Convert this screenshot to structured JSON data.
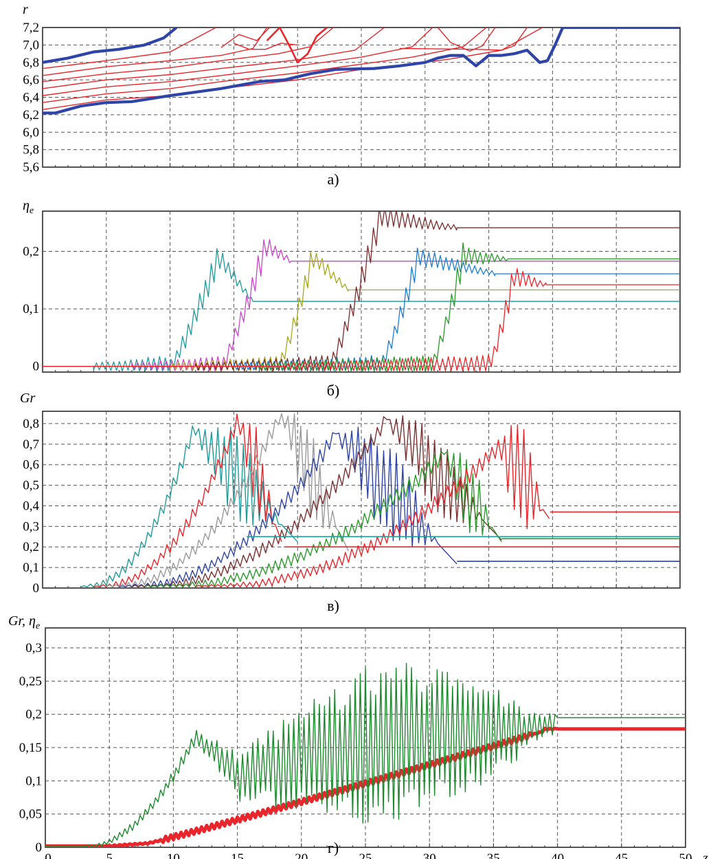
{
  "chart_data": [
    {
      "panel": "a",
      "type": "line",
      "caption": "а)",
      "ylabel": "r",
      "xlim": [
        0,
        50
      ],
      "ylim": [
        5.6,
        7.2
      ],
      "yticks": [
        "5,6",
        "5,8",
        "6,0",
        "6,2",
        "6,4",
        "6,6",
        "6,8",
        "7,0",
        "7,2"
      ],
      "grid": true,
      "series": [
        {
          "color": "#e8262b",
          "width": 1.4,
          "points": [
            [
              0,
              6.26
            ],
            [
              5,
              6.37
            ],
            [
              10,
              6.42
            ],
            [
              14,
              6.5
            ],
            [
              20,
              6.6
            ],
            [
              25,
              6.72
            ],
            [
              28,
              6.76
            ],
            [
              32,
              6.84
            ],
            [
              36,
              6.94
            ],
            [
              39.2,
              7.2
            ]
          ]
        },
        {
          "color": "#e8262b",
          "width": 1.4,
          "points": [
            [
              0,
              6.34
            ],
            [
              5,
              6.44
            ],
            [
              10,
              6.5
            ],
            [
              14,
              6.58
            ],
            [
              20,
              6.68
            ],
            [
              25,
              6.78
            ],
            [
              29,
              6.86
            ],
            [
              33,
              6.98
            ],
            [
              34.8,
              7.2
            ]
          ]
        },
        {
          "color": "#e8262b",
          "width": 1.4,
          "points": [
            [
              0,
              6.42
            ],
            [
              5,
              6.52
            ],
            [
              10,
              6.58
            ],
            [
              14,
              6.65
            ],
            [
              20,
              6.76
            ],
            [
              25,
              6.86
            ],
            [
              29,
              6.98
            ],
            [
              30.6,
              7.2
            ]
          ]
        },
        {
          "color": "#e8262b",
          "width": 1.4,
          "points": [
            [
              0,
              6.5
            ],
            [
              5,
              6.6
            ],
            [
              10,
              6.66
            ],
            [
              14,
              6.73
            ],
            [
              20,
              6.83
            ],
            [
              24.5,
              6.94
            ],
            [
              26.8,
              7.2
            ]
          ]
        },
        {
          "color": "#e8262b",
          "width": 1.4,
          "points": [
            [
              0,
              6.58
            ],
            [
              5,
              6.67
            ],
            [
              10,
              6.74
            ],
            [
              14,
              6.82
            ],
            [
              18.5,
              6.9
            ],
            [
              21,
              6.98
            ],
            [
              22.8,
              7.2
            ]
          ]
        },
        {
          "color": "#e8262b",
          "width": 1.4,
          "points": [
            [
              0,
              6.65
            ],
            [
              5,
              6.75
            ],
            [
              10,
              6.82
            ],
            [
              14,
              6.88
            ],
            [
              16.5,
              6.96
            ],
            [
              17.6,
              7.2
            ]
          ]
        },
        {
          "color": "#e8262b",
          "width": 1.4,
          "points": [
            [
              0,
              6.73
            ],
            [
              5,
              6.82
            ],
            [
              10,
              6.92
            ],
            [
              13.6,
              7.2
            ]
          ]
        },
        {
          "color": "#e8262b",
          "width": 1.4,
          "points": [
            [
              14,
              6.97
            ],
            [
              15.4,
              7.12
            ],
            [
              16.8,
              7.05
            ],
            [
              17.8,
              7.2
            ]
          ]
        },
        {
          "color": "#e8262b",
          "width": 2.6,
          "points": [
            [
              17.6,
              7.05
            ],
            [
              18.6,
              7.2
            ],
            [
              19.4,
              6.98
            ],
            [
              20,
              6.8
            ],
            [
              20.8,
              6.9
            ],
            [
              21.5,
              7.1
            ],
            [
              22.3,
              7.2
            ]
          ]
        },
        {
          "color": "#e8262b",
          "width": 1.4,
          "points": [
            [
              15,
              7.02
            ],
            [
              16.2,
              6.95
            ],
            [
              17.5,
              6.95
            ],
            [
              18.7,
              7.02
            ],
            [
              20,
              7.0
            ]
          ]
        },
        {
          "color": "#e8262b",
          "width": 1.4,
          "points": [
            [
              28,
              6.96
            ],
            [
              34,
              6.95
            ],
            [
              36,
              6.94
            ],
            [
              37,
              6.99
            ],
            [
              38,
              7.2
            ]
          ]
        },
        {
          "color": "#e8262b",
          "width": 1.4,
          "points": [
            [
              31,
              7.2
            ],
            [
              32,
              7.03
            ],
            [
              33.5,
              6.93
            ],
            [
              34.5,
              6.99
            ],
            [
              35.5,
              7.2
            ]
          ]
        },
        {
          "color": "#2e44a8",
          "width": 4.2,
          "points": [
            [
              0,
              6.22
            ],
            [
              1,
              6.22
            ],
            [
              3,
              6.3
            ],
            [
              5,
              6.34
            ],
            [
              7,
              6.35
            ],
            [
              10,
              6.42
            ],
            [
              12,
              6.46
            ],
            [
              14,
              6.5
            ],
            [
              17,
              6.58
            ],
            [
              19,
              6.6
            ],
            [
              21,
              6.67
            ],
            [
              23,
              6.72
            ],
            [
              26,
              6.73
            ],
            [
              28,
              6.76
            ],
            [
              30,
              6.8
            ],
            [
              31,
              6.85
            ],
            [
              32,
              6.88
            ],
            [
              33,
              6.88
            ],
            [
              34,
              6.76
            ],
            [
              35,
              6.88
            ],
            [
              36,
              6.88
            ],
            [
              37,
              6.9
            ],
            [
              38,
              6.94
            ],
            [
              39,
              6.8
            ],
            [
              39.6,
              6.82
            ],
            [
              40.2,
              7.0
            ],
            [
              40.8,
              7.2
            ],
            [
              50,
              7.2
            ]
          ]
        },
        {
          "color": "#2e44a8",
          "width": 4.2,
          "points": [
            [
              0,
              6.8
            ],
            [
              2,
              6.85
            ],
            [
              4,
              6.92
            ],
            [
              6,
              6.95
            ],
            [
              8,
              7.0
            ],
            [
              9.5,
              7.08
            ],
            [
              10.5,
              7.2
            ]
          ]
        }
      ]
    },
    {
      "panel": "b",
      "type": "line",
      "caption": "б)",
      "ylabel": "η",
      "ylabel_sub": "e",
      "xlim": [
        0,
        50
      ],
      "ylim": [
        -0.01,
        0.27
      ],
      "yticks": [
        {
          "v": 0,
          "t": "0"
        },
        {
          "v": 0.1,
          "t": "0,1"
        },
        {
          "v": 0.2,
          "t": "0,2"
        }
      ],
      "grid": true,
      "series": [
        {
          "color": "#1f9a9a",
          "start": 4,
          "rise": 10,
          "peak_x": 13.8,
          "peak": 0.19,
          "final_x": 16.5,
          "final": 0.113,
          "ripple": 0.018
        },
        {
          "color": "#cc44cc",
          "start": 7,
          "rise": 14,
          "peak_x": 17.5,
          "peak": 0.21,
          "final_x": 19.5,
          "final": 0.183,
          "ripple": 0.018
        },
        {
          "color": "#a8a81a",
          "start": 10,
          "rise": 18.5,
          "peak_x": 21.2,
          "peak": 0.19,
          "final_x": 24,
          "final": 0.133,
          "ripple": 0.018
        },
        {
          "color": "#7a2c2c",
          "start": 12,
          "rise": 22.5,
          "peak_x": 26.5,
          "peak": 0.26,
          "final_x": 32.5,
          "final": 0.241,
          "ripple": 0.02
        },
        {
          "color": "#1a7fd1",
          "start": 15,
          "rise": 26.5,
          "peak_x": 29.5,
          "peak": 0.19,
          "final_x": 35.5,
          "final": 0.161,
          "ripple": 0.018
        },
        {
          "color": "#2a9a2a",
          "start": 17,
          "rise": 30.5,
          "peak_x": 33,
          "peak": 0.19,
          "final_x": 36.5,
          "final": 0.187,
          "ripple": 0.018
        },
        {
          "color": "#e8262b",
          "start": 19,
          "rise": 35,
          "peak_x": 37,
          "peak": 0.155,
          "final_x": 39.5,
          "final": 0.142,
          "ripple": 0.018
        }
      ]
    },
    {
      "panel": "c",
      "type": "line",
      "caption": "в)",
      "ylabel": "Gr",
      "xlim": [
        0,
        50
      ],
      "ylim": [
        0,
        0.86
      ],
      "yticks": [
        {
          "v": 0,
          "t": "0"
        },
        {
          "v": 0.1,
          "t": "0,1"
        },
        {
          "v": 0.2,
          "t": "0,2"
        },
        {
          "v": 0.3,
          "t": "0,3"
        },
        {
          "v": 0.4,
          "t": "0,4"
        },
        {
          "v": 0.5,
          "t": "0,5"
        },
        {
          "v": 0.6,
          "t": "0,6"
        },
        {
          "v": 0.7,
          "t": "0,7"
        },
        {
          "v": 0.8,
          "t": "0,8"
        }
      ],
      "grid": true,
      "series": [
        {
          "color": "#1f9a9a",
          "start": 3,
          "peak_x": 11.8,
          "peak": 0.77,
          "end_x": 20,
          "final": 0.25,
          "amp": 0.22
        },
        {
          "color": "#e8262b",
          "start": 4,
          "peak_x": 15.3,
          "peak": 0.81,
          "end_x": 18.8,
          "final": 0.24,
          "amp": 0.22
        },
        {
          "color": "#9a9a9a",
          "start": 5,
          "peak_x": 18.7,
          "peak": 0.85,
          "end_x": 24,
          "final": 0.2,
          "amp": 0.22
        },
        {
          "color": "#2e44a8",
          "start": 6,
          "peak_x": 23,
          "peak": 0.75,
          "end_x": 32.5,
          "final": 0.13,
          "amp": 0.24
        },
        {
          "color": "#7a3030",
          "start": 7,
          "peak_x": 27,
          "peak": 0.82,
          "end_x": 36,
          "final": 0.26,
          "amp": 0.2
        },
        {
          "color": "#2a9a2a",
          "start": 8,
          "peak_x": 31.5,
          "peak": 0.65,
          "end_x": 36,
          "final": 0.25,
          "amp": 0.2
        },
        {
          "color": "#e8262b",
          "start": 12,
          "peak_x": 35.8,
          "peak": 0.69,
          "end_x": 39.8,
          "final": 0.37,
          "amp": 0.3
        }
      ],
      "flat_lines": [
        {
          "color": "#1f9a9a",
          "y": 0.25,
          "x0": 16,
          "x1": 50
        },
        {
          "color": "#2a9a2a",
          "y": 0.24,
          "x0": 36,
          "x1": 50
        },
        {
          "color": "#e8262b",
          "y": 0.2,
          "x0": 19,
          "x1": 50
        },
        {
          "color": "#2e44a8",
          "y": 0.13,
          "x0": 32.5,
          "x1": 50
        },
        {
          "color": "#e8262b",
          "y": 0.37,
          "x0": 39.8,
          "x1": 50
        }
      ]
    },
    {
      "panel": "d",
      "type": "line",
      "caption": "г)",
      "ylabel": "Gr, η",
      "ylabel_sub": "e",
      "xlabel": "z",
      "xlim": [
        0,
        50
      ],
      "ylim": [
        0,
        0.33
      ],
      "xticks": [
        "0",
        "5",
        "10",
        "15",
        "20",
        "25",
        "30",
        "35",
        "40",
        "45",
        "50"
      ],
      "yticks": [
        {
          "v": 0,
          "t": "0"
        },
        {
          "v": 0.05,
          "t": "0,05"
        },
        {
          "v": 0.1,
          "t": "0,1"
        },
        {
          "v": 0.15,
          "t": "0,15"
        },
        {
          "v": 0.2,
          "t": "0,2"
        },
        {
          "v": 0.25,
          "t": "0,25"
        },
        {
          "v": 0.3,
          "t": "0,3"
        }
      ],
      "grid": true,
      "series": [
        {
          "name": "Gr",
          "color": "#1e8a2e",
          "kind": "gr",
          "final": 0.195
        },
        {
          "name": "η_e",
          "color": "#e8262b",
          "kind": "eta",
          "final": 0.178
        }
      ]
    }
  ]
}
